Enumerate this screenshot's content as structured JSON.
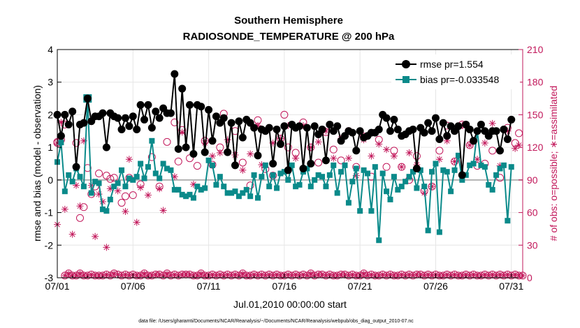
{
  "chart_data": {
    "type": "line",
    "title": "Southern Hemisphere",
    "subtitle": "RADIOSONDE_TEMPERATURE @ 200 hPa",
    "xlabel": "Jul.01,2010 00:00:00 start",
    "ylabel": "rmse and bias (model - observation)",
    "ylabel_right": "# of obs: o=possible; ∗=assimilated",
    "footnote": "data file: /Users/gharamti/Documents/NCAR/Reanalysis/~/Documents/NCAR/Reanalysis/webpub/obs_diag_output_2010-07.nc",
    "xlim": [
      0,
      30.75
    ],
    "ylim": [
      -3,
      4
    ],
    "ylim_right": [
      0,
      210
    ],
    "x_ticks": [
      0,
      5,
      10,
      15,
      20,
      25,
      30
    ],
    "x_tick_labels": [
      "07/01",
      "07/06",
      "07/11",
      "07/16",
      "07/21",
      "07/26",
      "07/31"
    ],
    "y_ticks": [
      -3,
      -2,
      -1,
      0,
      1,
      2,
      3,
      4
    ],
    "y_tick_labels": [
      "-3",
      "-2",
      "-1",
      "0",
      "1",
      "2",
      "3",
      "4"
    ],
    "y_right_ticks": [
      0,
      30,
      60,
      90,
      120,
      150,
      180,
      210
    ],
    "y_right_tick_labels": [
      "0",
      "30",
      "60",
      "90",
      "120",
      "150",
      "180",
      "210"
    ],
    "legend_position": "top-right",
    "series": [
      {
        "name": "rmse pr=1.554",
        "color": "#000000",
        "values": [
          2.0,
          1.35,
          2.0,
          1.7,
          2.1,
          0.4,
          1.7,
          1.75,
          2.5,
          1.8,
          1.95,
          1.95,
          2.05,
          1.0,
          2.05,
          1.95,
          1.9,
          1.55,
          1.9,
          1.65,
          1.95,
          1.55,
          2.3,
          1.85,
          2.3,
          1.6,
          2.1,
          1.9,
          2.2,
          2.05,
          2.05,
          3.25,
          0.95,
          2.8,
          1.0,
          2.3,
          0.8,
          2.3,
          2.25,
          0.85,
          2.15,
          1.2,
          1.95,
          1.75,
          1.9,
          0.85,
          1.75,
          0.45,
          1.8,
          1.3,
          1.85,
          1.75,
          1.6,
          0.75,
          1.55,
          1.5,
          1.6,
          0.5,
          1.55,
          1.1,
          1.65,
          0.3,
          1.7,
          1.6,
          1.65,
          0.35,
          1.6,
          0.5,
          1.65,
          1.4,
          1.55,
          0.6,
          1.7,
          1.5,
          1.65,
          1.2,
          1.35,
          1.5,
          1.45,
          0.9,
          1.5,
          1.3,
          1.35,
          1.45,
          1.45,
          1.55,
          2.0,
          1.9,
          1.5,
          1.85,
          1.55,
          1.35,
          1.4,
          1.5,
          1.55,
          0.35,
          1.6,
          1.45,
          1.75,
          1.5,
          1.9,
          1.25,
          1.75,
          1.35,
          1.65,
          1.5,
          1.65,
          0.15,
          1.7,
          1.55,
          1.2,
          1.5,
          1.7,
          1.5,
          1.35,
          1.5,
          1.5,
          0.9,
          1.55,
          1.25,
          1.85
        ]
      },
      {
        "name": "bias pr=-0.033548",
        "color": "#0a8a8a",
        "values": [
          0.55,
          1.15,
          -0.35,
          0.15,
          -0.05,
          0.35,
          0.1,
          -0.2,
          2.5,
          -0.4,
          -0.05,
          -0.1,
          -0.9,
          -0.95,
          -0.6,
          -0.2,
          -0.1,
          0.3,
          -0.2,
          0.05,
          0.0,
          0.1,
          0.5,
          0.05,
          0.4,
          1.2,
          0.2,
          0.05,
          0.5,
          0.35,
          0.3,
          -0.3,
          -0.3,
          -0.45,
          -0.5,
          -0.45,
          -0.55,
          -0.2,
          -0.3,
          -0.25,
          0.6,
          0.45,
          -0.15,
          0.1,
          -0.2,
          -0.4,
          -0.4,
          -0.35,
          -0.5,
          -0.4,
          -0.3,
          -0.5,
          0.15,
          -0.55,
          0.1,
          0.45,
          -0.2,
          0.15,
          -0.25,
          0.2,
          0.25,
          0.0,
          0.45,
          -0.2,
          -0.15,
          0.25,
          0.35,
          -0.2,
          0.0,
          0.15,
          0.1,
          -0.2,
          0.15,
          0.45,
          -0.4,
          0.25,
          0.45,
          -0.7,
          -0.05,
          0.35,
          -0.95,
          0.3,
          0.2,
          -0.95,
          0.4,
          -1.85,
          0.2,
          -0.35,
          -0.6,
          0.1,
          -0.3,
          -0.2,
          -0.05,
          0.1,
          0.25,
          -0.25,
          0.3,
          -0.2,
          -1.55,
          0.25,
          0.5,
          -1.6,
          0.3,
          0.25,
          -0.35,
          0.3,
          0.75,
          0.0,
          0.15,
          0.45,
          0.5,
          1.5,
          0.45,
          0.4,
          -0.15,
          -0.3,
          0.15,
          0.35,
          0.45,
          -1.25,
          0.4
        ]
      },
      {
        "name": "possible",
        "color": "#c2185b",
        "values": [
          124,
          127,
          2,
          4,
          2,
          2,
          4,
          2,
          2,
          3,
          2,
          2,
          2,
          3,
          2,
          4,
          3,
          2,
          3,
          2,
          3,
          2,
          2,
          4,
          2,
          2,
          3,
          3,
          2,
          4,
          2,
          3,
          2,
          3,
          3,
          3,
          2,
          2,
          4,
          2,
          2,
          3,
          2,
          3,
          2,
          3,
          2,
          3,
          2,
          4,
          2,
          2,
          3,
          2,
          3,
          2,
          3,
          2,
          3,
          2,
          2,
          3,
          2,
          3,
          2,
          3,
          2,
          4,
          2,
          3,
          3,
          2,
          3,
          2,
          2,
          3,
          3,
          2,
          3,
          2,
          2,
          4,
          2,
          3,
          2,
          2,
          3,
          2,
          3,
          2,
          2,
          3,
          2,
          3,
          2,
          3,
          3,
          2,
          3,
          2,
          3,
          2,
          2,
          3,
          2,
          3,
          2,
          2,
          3,
          2,
          3,
          2,
          2,
          3,
          2,
          3,
          2,
          3,
          2,
          3,
          2,
          3,
          2,
          2
        ],
        "circles": [
          [
            0.0,
            125
          ],
          [
            0.25,
            147
          ],
          [
            0.5,
            141
          ],
          [
            1.25,
            124
          ],
          [
            1.5,
            55
          ],
          [
            1.75,
            65
          ],
          [
            2.0,
            101
          ],
          [
            2.25,
            77
          ],
          [
            2.5,
            84
          ],
          [
            2.75,
            96
          ],
          [
            3.25,
            94
          ],
          [
            3.5,
            91
          ],
          [
            3.75,
            92
          ],
          [
            4.25,
            69
          ],
          [
            4.5,
            75
          ],
          [
            4.75,
            92
          ],
          [
            5.0,
            76
          ],
          [
            5.5,
            86
          ],
          [
            6.25,
            111
          ],
          [
            6.75,
            84
          ],
          [
            7.25,
            125
          ],
          [
            7.75,
            143
          ],
          [
            8.0,
            107
          ],
          [
            8.25,
            136
          ],
          [
            8.75,
            110
          ],
          [
            9.25,
            103
          ],
          [
            9.75,
            126
          ],
          [
            10.25,
            104
          ],
          [
            10.75,
            120
          ],
          [
            11.0,
            151
          ],
          [
            11.75,
            135
          ],
          [
            12.25,
            106
          ],
          [
            12.75,
            85
          ],
          [
            13.25,
            145
          ],
          [
            13.75,
            100
          ],
          [
            14.25,
            94
          ],
          [
            14.75,
            128
          ],
          [
            15.0,
            150
          ],
          [
            15.25,
            120
          ],
          [
            15.75,
            115
          ],
          [
            16.25,
            143
          ],
          [
            16.75,
            120
          ],
          [
            17.25,
            106
          ],
          [
            17.75,
            134
          ],
          [
            18.25,
            118
          ],
          [
            18.75,
            108
          ],
          [
            19.25,
            135
          ],
          [
            19.75,
            102
          ],
          [
            20.25,
            130
          ],
          [
            20.75,
            93
          ],
          [
            21.25,
            127
          ],
          [
            21.75,
            102
          ],
          [
            22.25,
            117
          ],
          [
            22.75,
            102
          ],
          [
            23.25,
            90
          ],
          [
            23.75,
            112
          ],
          [
            24.25,
            80
          ],
          [
            24.75,
            84
          ],
          [
            25.25,
            117
          ],
          [
            25.75,
            140
          ],
          [
            26.25,
            107
          ],
          [
            26.75,
            141
          ],
          [
            27.25,
            122
          ],
          [
            27.75,
            103
          ],
          [
            28.25,
            105
          ],
          [
            28.75,
            117
          ],
          [
            29.25,
            92
          ],
          [
            29.75,
            138
          ],
          [
            30.25,
            124
          ],
          [
            30.5,
            133
          ]
        ],
        "asterisks": [
          [
            0.0,
            49
          ],
          [
            0.25,
            143
          ],
          [
            0.5,
            63
          ],
          [
            1.0,
            40
          ],
          [
            1.25,
            85
          ],
          [
            1.5,
            66
          ],
          [
            1.75,
            126
          ],
          [
            2.25,
            85
          ],
          [
            2.5,
            38
          ],
          [
            2.75,
            77
          ],
          [
            3.0,
            70
          ],
          [
            3.25,
            28
          ],
          [
            3.5,
            82
          ],
          [
            4.0,
            80
          ],
          [
            4.5,
            61
          ],
          [
            4.75,
            109
          ],
          [
            5.25,
            51
          ],
          [
            5.5,
            83
          ],
          [
            6.0,
            76
          ],
          [
            6.75,
            82
          ],
          [
            7.75,
            93
          ],
          [
            7.0,
            62
          ],
          [
            8.25,
            134
          ],
          [
            9.0,
            86
          ],
          [
            9.75,
            124
          ],
          [
            10.25,
            112
          ],
          [
            10.75,
            115
          ],
          [
            11.25,
            127
          ],
          [
            11.75,
            113
          ],
          [
            12.25,
            99
          ],
          [
            12.75,
            114
          ],
          [
            13.25,
            140
          ],
          [
            13.5,
            104
          ],
          [
            13.75,
            135
          ],
          [
            14.25,
            124
          ],
          [
            14.75,
            128
          ],
          [
            15.25,
            140
          ],
          [
            15.75,
            110
          ],
          [
            16.25,
            140
          ],
          [
            16.75,
            120
          ],
          [
            17.25,
            125
          ],
          [
            17.75,
            135
          ],
          [
            18.25,
            110
          ],
          [
            18.75,
            128
          ],
          [
            19.25,
            110
          ],
          [
            19.75,
            94
          ],
          [
            20.25,
            127
          ],
          [
            20.75,
            112
          ],
          [
            21.25,
            123
          ],
          [
            21.75,
            118
          ],
          [
            22.25,
            112
          ],
          [
            22.75,
            102
          ],
          [
            23.25,
            115
          ],
          [
            23.75,
            104
          ],
          [
            24.25,
            78
          ],
          [
            24.75,
            84
          ],
          [
            25.25,
            109
          ],
          [
            25.75,
            126
          ],
          [
            26.25,
            107
          ],
          [
            26.75,
            140
          ],
          [
            27.25,
            122
          ],
          [
            27.75,
            109
          ],
          [
            28.25,
            124
          ],
          [
            28.75,
            142
          ],
          [
            29.25,
            103
          ],
          [
            29.75,
            135
          ],
          [
            30.25,
            119
          ],
          [
            30.5,
            122
          ]
        ]
      }
    ]
  }
}
